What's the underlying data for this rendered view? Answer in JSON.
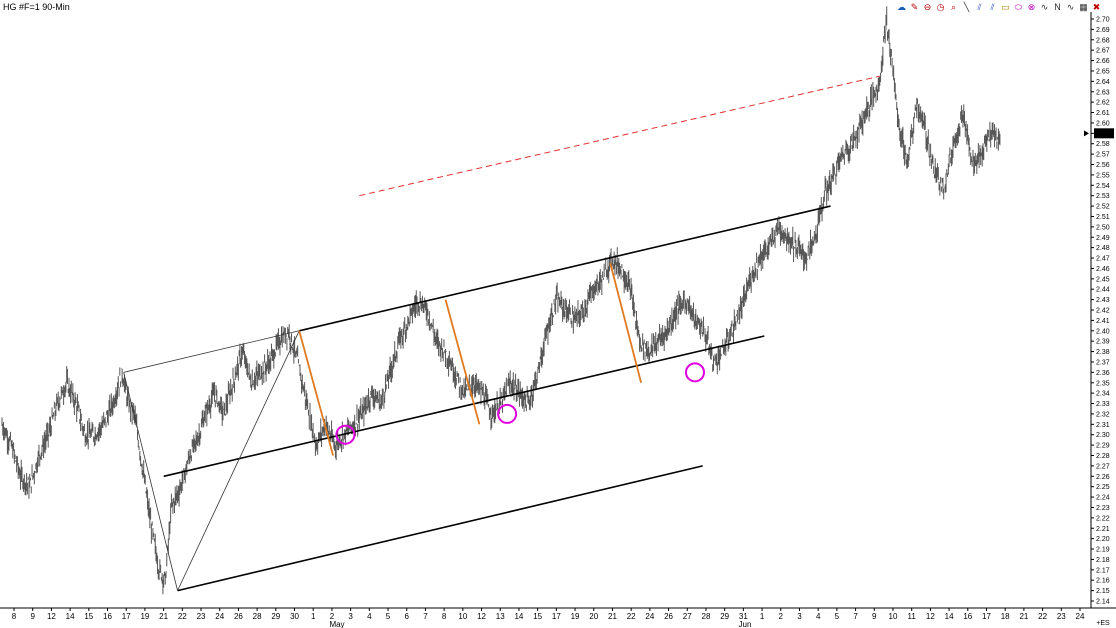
{
  "window": {
    "title": "HG #F=1 90-Min"
  },
  "toolbar": {
    "tools": [
      {
        "icon": "cloud-icon",
        "glyph": "☁",
        "color": "#1b5fb8"
      },
      {
        "icon": "pencil-icon",
        "glyph": "✎",
        "color": "#c00000"
      },
      {
        "icon": "no-entry-icon",
        "glyph": "⊖",
        "color": "#c00000"
      },
      {
        "icon": "clock-icon",
        "glyph": "◷",
        "color": "#c00000"
      },
      {
        "icon": "magnifier-icon",
        "glyph": "⌕",
        "color": "#c00000"
      },
      {
        "icon": "line-tool-icon",
        "glyph": "╲",
        "color": "#303030"
      },
      {
        "icon": "channel-tool-icon",
        "glyph": "⫽",
        "color": "#3050d0"
      },
      {
        "icon": "fan-tool-icon",
        "glyph": "⫽",
        "color": "#3050d0"
      },
      {
        "icon": "rectangle-tool-icon",
        "glyph": "▭",
        "color": "#b08000"
      },
      {
        "icon": "ellipse-tool-icon",
        "glyph": "⬭",
        "color": "#c000c0"
      },
      {
        "icon": "circle-tool-icon",
        "glyph": "⊗",
        "color": "#c000c0"
      },
      {
        "icon": "wave-tool-icon",
        "glyph": "∿",
        "color": "#303030"
      },
      {
        "icon": "n-wave-icon",
        "glyph": "N",
        "color": "#303030"
      },
      {
        "icon": "wave-count-icon",
        "glyph": "∿",
        "color": "#303030"
      },
      {
        "icon": "grid-icon",
        "glyph": "▦",
        "color": "#303030"
      },
      {
        "icon": "close-icon",
        "glyph": "✖",
        "color": "#c00000"
      }
    ]
  },
  "chart_data": {
    "type": "candlestick",
    "title": "HG #F=1 90-Min",
    "symbol": "HG #F=1",
    "interval": "90-Min",
    "last_price": "2.59",
    "bottom_right_label": "+ES",
    "ylim": [
      2.14,
      2.7
    ],
    "y_ticks": [
      "2.70",
      "2.69",
      "2.68",
      "2.67",
      "2.66",
      "2.65",
      "2.64",
      "2.63",
      "2.62",
      "2.61",
      "2.60",
      "2.59",
      "2.58",
      "2.57",
      "2.56",
      "2.55",
      "2.54",
      "2.53",
      "2.52",
      "2.51",
      "2.50",
      "2.49",
      "2.48",
      "2.47",
      "2.46",
      "2.45",
      "2.44",
      "2.43",
      "2.42",
      "2.41",
      "2.40",
      "2.39",
      "2.38",
      "2.37",
      "2.36",
      "2.35",
      "2.34",
      "2.33",
      "2.32",
      "2.31",
      "2.30",
      "2.29",
      "2.28",
      "2.27",
      "2.26",
      "2.25",
      "2.24",
      "2.23",
      "2.22",
      "2.21",
      "2.20",
      "2.19",
      "2.18",
      "2.17",
      "2.16",
      "2.15",
      "2.14"
    ],
    "x_ticks": [
      "8",
      "9",
      "12",
      "14",
      "15",
      "16",
      "17",
      "19",
      "21",
      "22",
      "23",
      "24",
      "26",
      "28",
      "29",
      "30",
      "1",
      "2",
      "3",
      "4",
      "5",
      "6",
      "7",
      "8",
      "10",
      "12",
      "13",
      "14",
      "15",
      "17",
      "19",
      "20",
      "21",
      "22",
      "24",
      "26",
      "27",
      "28",
      "29",
      "31",
      "1",
      "2",
      "3",
      "4",
      "5",
      "7",
      "9",
      "10",
      "11",
      "12",
      "14",
      "16",
      "17",
      "18",
      "21",
      "22",
      "23",
      "24"
    ],
    "month_labels": [
      "May",
      "Jun"
    ],
    "price_path": [
      [
        0,
        2.31
      ],
      [
        0.6,
        2.29
      ],
      [
        1.2,
        2.26
      ],
      [
        1.8,
        2.25
      ],
      [
        2.4,
        2.28
      ],
      [
        3.0,
        2.3
      ],
      [
        3.6,
        2.33
      ],
      [
        4.2,
        2.35
      ],
      [
        4.8,
        2.33
      ],
      [
        5.4,
        2.3
      ],
      [
        6.0,
        2.3
      ],
      [
        6.6,
        2.31
      ],
      [
        7.2,
        2.33
      ],
      [
        7.8,
        2.36
      ],
      [
        8.2,
        2.33
      ],
      [
        8.6,
        2.32
      ],
      [
        9.0,
        2.28
      ],
      [
        9.6,
        2.22
      ],
      [
        10.2,
        2.17
      ],
      [
        10.6,
        2.16
      ],
      [
        11.0,
        2.23
      ],
      [
        11.6,
        2.25
      ],
      [
        12.2,
        2.28
      ],
      [
        12.8,
        2.3
      ],
      [
        13.2,
        2.32
      ],
      [
        13.8,
        2.34
      ],
      [
        14.4,
        2.32
      ],
      [
        15.0,
        2.35
      ],
      [
        15.6,
        2.38
      ],
      [
        16.2,
        2.35
      ],
      [
        16.8,
        2.36
      ],
      [
        17.4,
        2.37
      ],
      [
        18.0,
        2.39
      ],
      [
        18.6,
        2.4
      ],
      [
        19.2,
        2.37
      ],
      [
        19.8,
        2.33
      ],
      [
        20.4,
        2.29
      ],
      [
        21.0,
        2.31
      ],
      [
        21.6,
        2.29
      ],
      [
        22.2,
        2.3
      ],
      [
        22.8,
        2.31
      ],
      [
        23.4,
        2.32
      ],
      [
        24.0,
        2.34
      ],
      [
        24.6,
        2.33
      ],
      [
        25.2,
        2.36
      ],
      [
        25.8,
        2.39
      ],
      [
        26.4,
        2.41
      ],
      [
        27.0,
        2.43
      ],
      [
        27.6,
        2.42
      ],
      [
        28.2,
        2.39
      ],
      [
        28.8,
        2.38
      ],
      [
        29.4,
        2.36
      ],
      [
        30.0,
        2.34
      ],
      [
        30.6,
        2.35
      ],
      [
        31.2,
        2.34
      ],
      [
        31.8,
        2.32
      ],
      [
        32.4,
        2.33
      ],
      [
        33.0,
        2.35
      ],
      [
        33.6,
        2.34
      ],
      [
        34.2,
        2.33
      ],
      [
        34.8,
        2.36
      ],
      [
        35.4,
        2.4
      ],
      [
        36.0,
        2.43
      ],
      [
        36.6,
        2.42
      ],
      [
        37.2,
        2.41
      ],
      [
        37.8,
        2.42
      ],
      [
        38.4,
        2.44
      ],
      [
        39.0,
        2.45
      ],
      [
        39.6,
        2.47
      ],
      [
        40.2,
        2.46
      ],
      [
        40.8,
        2.44
      ],
      [
        41.4,
        2.39
      ],
      [
        42.0,
        2.38
      ],
      [
        42.6,
        2.39
      ],
      [
        43.2,
        2.4
      ],
      [
        43.8,
        2.42
      ],
      [
        44.4,
        2.43
      ],
      [
        45.0,
        2.41
      ],
      [
        45.6,
        2.4
      ],
      [
        46.2,
        2.37
      ],
      [
        46.8,
        2.38
      ],
      [
        47.4,
        2.4
      ],
      [
        48.0,
        2.42
      ],
      [
        48.6,
        2.45
      ],
      [
        49.2,
        2.47
      ],
      [
        49.8,
        2.48
      ],
      [
        50.4,
        2.5
      ],
      [
        51.0,
        2.49
      ],
      [
        51.6,
        2.48
      ],
      [
        52.2,
        2.47
      ],
      [
        52.8,
        2.49
      ],
      [
        53.4,
        2.53
      ],
      [
        54.0,
        2.55
      ],
      [
        54.6,
        2.57
      ],
      [
        55.2,
        2.58
      ],
      [
        55.8,
        2.6
      ],
      [
        56.4,
        2.62
      ],
      [
        57.0,
        2.64
      ],
      [
        57.4,
        2.7
      ],
      [
        57.8,
        2.66
      ],
      [
        58.2,
        2.6
      ],
      [
        58.8,
        2.56
      ],
      [
        59.4,
        2.62
      ],
      [
        60.0,
        2.59
      ],
      [
        60.6,
        2.55
      ],
      [
        61.2,
        2.54
      ],
      [
        61.8,
        2.58
      ],
      [
        62.4,
        2.61
      ],
      [
        63.0,
        2.56
      ],
      [
        63.6,
        2.57
      ],
      [
        64.2,
        2.59
      ],
      [
        64.8,
        2.58
      ]
    ],
    "annotations": {
      "channel_upper": [
        [
          7.9,
          2.36
        ],
        [
          19.3,
          2.4
        ],
        [
          53.8,
          2.52
        ]
      ],
      "channel_lower": [
        [
          10.5,
          2.26
        ],
        [
          49.5,
          2.395
        ]
      ],
      "channel_parallel": [
        [
          11.4,
          2.15
        ],
        [
          45.5,
          2.27
        ]
      ],
      "dashed_target": [
        [
          23.2,
          2.53
        ],
        [
          57.0,
          2.645
        ]
      ],
      "fork_lines": [
        [
          [
            7.9,
            2.36
          ],
          [
            11.4,
            2.15
          ]
        ],
        [
          [
            11.4,
            2.15
          ],
          [
            19.3,
            2.4
          ]
        ],
        [
          [
            7.9,
            2.36
          ],
          [
            19.3,
            2.4
          ]
        ]
      ],
      "orange_moves": [
        [
          [
            19.3,
            2.4
          ],
          [
            21.5,
            2.28
          ]
        ],
        [
          [
            28.8,
            2.43
          ],
          [
            31.0,
            2.31
          ]
        ],
        [
          [
            39.5,
            2.465
          ],
          [
            41.5,
            2.35
          ]
        ]
      ],
      "circle_markers": [
        [
          22.3,
          2.3
        ],
        [
          32.8,
          2.32
        ],
        [
          45.0,
          2.36
        ]
      ]
    }
  }
}
